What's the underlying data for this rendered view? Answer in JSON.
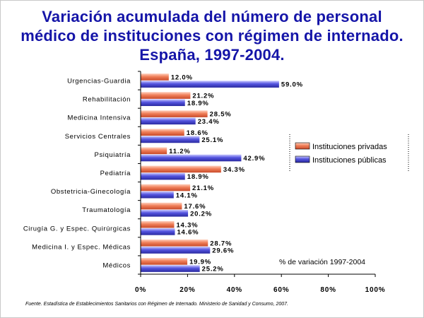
{
  "title": "Variación acumulada del número de personal médico de instituciones con régimen de internado. España, 1997-2004.",
  "footnote": "Fuente. Estadística de Establecimientos Sanitarios con Régimen de Internado. Ministerio de Sanidad y Consumo, 2007.",
  "axis_note": "% de variación 1997-2004",
  "colors": {
    "privadas": "#f07f59",
    "publicas": "#5454df"
  },
  "chart_data": {
    "type": "bar",
    "orientation": "horizontal",
    "categories": [
      "Urgencias-Guardia",
      "Rehabilitación",
      "Medicina Intensiva",
      "Servicios Centrales",
      "Psiquiatría",
      "Pediatría",
      "Obstetricia-Ginecología",
      "Traumatología",
      "Cirugía G. y Espec. Quirúrgicas",
      "Medicina I. y Espec. Médicas",
      "Médicos"
    ],
    "series": [
      {
        "name": "Instituciones privadas",
        "values": [
          12.0,
          21.2,
          28.5,
          18.6,
          11.2,
          34.3,
          21.1,
          17.6,
          14.3,
          28.7,
          19.9
        ]
      },
      {
        "name": "Instituciones públicas",
        "values": [
          59.0,
          18.9,
          23.4,
          25.1,
          42.9,
          18.9,
          14.1,
          20.2,
          14.6,
          29.6,
          25.2
        ]
      }
    ],
    "value_labels": {
      "privadas": [
        "12.0%",
        "21.2%",
        "28.5%",
        "18.6%",
        "11.2%",
        "34.3%",
        "21.1%",
        "17.6%",
        "14.3%",
        "28.7%",
        "19.9%"
      ],
      "publicas": [
        "59.0%",
        "18.9%",
        "23.4%",
        "25.1%",
        "42.9%",
        "18.9%",
        "14.1%",
        "20.2%",
        "14.6%",
        "29.6%",
        "25.2%"
      ]
    },
    "xlim": [
      0,
      100
    ],
    "xticks": [
      "0%",
      "20%",
      "40%",
      "60%",
      "80%",
      "100%"
    ],
    "legend_position": "right",
    "grid": false
  }
}
